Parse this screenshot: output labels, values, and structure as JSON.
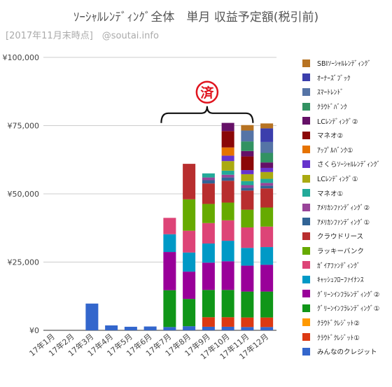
{
  "chart_data": {
    "type": "bar",
    "stacked": true,
    "title": "ｿｰｼｬﾙﾚﾝﾃﾞｨﾝｸﾞ全体　単月 収益予定額(税引前)",
    "subtitle": "[2017年11月末時点]　@soutai.info",
    "categories": [
      "17年1月",
      "17年2月",
      "17年3月",
      "17年4月",
      "17年5月",
      "17年6月",
      "17年7月",
      "17年8月",
      "17年9月",
      "17年10月",
      "17年11月",
      "17年12月"
    ],
    "y_ticks": [
      "¥0",
      "¥25,000",
      "¥50,000",
      "¥75,000",
      "¥100,000"
    ],
    "ylim": [
      0,
      100000
    ],
    "grid": true,
    "legend_position": "right",
    "annotation": {
      "stamp": "済",
      "spans_categories": [
        "17年9月",
        "17年11月"
      ]
    },
    "series": [
      {
        "name": "みんなのクレジット",
        "color": "#3366cc",
        "values": [
          0,
          0,
          9800,
          1800,
          1300,
          1400,
          1200,
          1500,
          1300,
          1300,
          1200,
          1200
        ]
      },
      {
        "name": "ｸﾗｳﾄﾞｸﾚｼﾞｯﾄ①",
        "color": "#dc3912",
        "values": [
          0,
          0,
          0,
          0,
          0,
          0,
          0,
          0,
          3500,
          3500,
          3500,
          3500
        ]
      },
      {
        "name": "ｸﾗｳﾄﾞｸﾚｼﾞｯﾄ②",
        "color": "#ff9900",
        "values": [
          0,
          0,
          0,
          0,
          0,
          0,
          0,
          0,
          0,
          0,
          0,
          0
        ]
      },
      {
        "name": "ｸﾞﾘｰﾝｲﾝﾌﾗﾚﾝﾃﾞｨﾝｸﾞ①",
        "color": "#109618",
        "values": [
          0,
          0,
          0,
          0,
          0,
          0,
          13500,
          10000,
          10000,
          10000,
          9500,
          9500
        ]
      },
      {
        "name": "ｸﾞﾘｰﾝｲﾝﾌﾗﾚﾝﾃﾞｨﾝｸﾞ②",
        "color": "#990099",
        "values": [
          0,
          0,
          0,
          0,
          0,
          0,
          14000,
          10000,
          10000,
          10500,
          9500,
          9800
        ]
      },
      {
        "name": "ｷｬｯｼｭﾌﾛｰﾌｧｲﾅﾝｽ",
        "color": "#0099c6",
        "values": [
          0,
          0,
          0,
          0,
          0,
          0,
          6500,
          7000,
          7000,
          7500,
          6500,
          6500
        ]
      },
      {
        "name": "ｶﾞｲｱﾌｧﾝﾃﾞｨﾝｸﾞ",
        "color": "#dd4477",
        "values": [
          0,
          0,
          0,
          0,
          0,
          0,
          6000,
          8000,
          7500,
          7500,
          7500,
          7500
        ]
      },
      {
        "name": "ラッキーバンク",
        "color": "#66aa00",
        "values": [
          0,
          0,
          0,
          0,
          0,
          0,
          0,
          11500,
          7000,
          6500,
          6500,
          7000
        ]
      },
      {
        "name": "クラウドリース",
        "color": "#b82e2e",
        "values": [
          0,
          0,
          0,
          0,
          0,
          0,
          0,
          13000,
          7500,
          8000,
          7000,
          7000
        ]
      },
      {
        "name": "ｱﾒﾘｶﾝﾌｧﾝﾃﾞｨﾝｸﾞ①",
        "color": "#316395",
        "values": [
          0,
          0,
          0,
          0,
          0,
          0,
          0,
          0,
          1200,
          1200,
          1000,
          1000
        ]
      },
      {
        "name": "ｱﾒﾘｶﾝﾌｧﾝﾃﾞｨﾝｸﾞ②",
        "color": "#994499",
        "values": [
          0,
          0,
          0,
          0,
          0,
          0,
          0,
          0,
          1000,
          1000,
          1000,
          1000
        ]
      },
      {
        "name": "マネオ①",
        "color": "#22aa99",
        "values": [
          0,
          0,
          0,
          0,
          0,
          0,
          0,
          0,
          1500,
          1500,
          1500,
          1500
        ]
      },
      {
        "name": "LCﾚﾝﾃﾞｨﾝｸﾞ①",
        "color": "#aaaa11",
        "values": [
          0,
          0,
          0,
          0,
          0,
          0,
          0,
          0,
          0,
          3500,
          2500,
          2500
        ]
      },
      {
        "name": "さくらｿｰｼｬﾙﾚﾝﾃﾞｨﾝｸﾞ",
        "color": "#6633cc",
        "values": [
          0,
          0,
          0,
          0,
          0,
          0,
          0,
          0,
          0,
          2000,
          1500,
          1500
        ]
      },
      {
        "name": "ｱｯﾌﾟﾙﾊﾞﾝｸ①",
        "color": "#e67300",
        "values": [
          0,
          0,
          0,
          0,
          0,
          0,
          0,
          0,
          0,
          3000,
          0,
          0
        ]
      },
      {
        "name": "マネオ②",
        "color": "#8b0707",
        "values": [
          0,
          0,
          0,
          0,
          0,
          0,
          0,
          0,
          0,
          6000,
          5000,
          0
        ]
      },
      {
        "name": "LCﾚﾝﾃﾞｨﾝｸﾞ②",
        "color": "#651067",
        "values": [
          0,
          0,
          0,
          0,
          0,
          0,
          0,
          0,
          0,
          3000,
          2000,
          2000
        ]
      },
      {
        "name": "ｸﾗｳﾄﾞﾊﾞﾝｸ",
        "color": "#329262",
        "values": [
          0,
          0,
          0,
          0,
          0,
          0,
          0,
          0,
          0,
          0,
          3500,
          3500
        ]
      },
      {
        "name": "ｽﾏｰﾄﾚﾝﾄﾞ",
        "color": "#5574a6",
        "values": [
          0,
          0,
          0,
          0,
          0,
          0,
          0,
          0,
          0,
          0,
          4000,
          4000
        ]
      },
      {
        "name": "ｵｰﾅｰｽﾞﾌﾞｯｸ",
        "color": "#3b3eac",
        "values": [
          0,
          0,
          0,
          0,
          0,
          0,
          0,
          0,
          0,
          0,
          0,
          5000
        ]
      },
      {
        "name": "SBIｿｰｼｬﾙﾚﾝﾃﾞｨﾝｸﾞ",
        "color": "#b77322",
        "values": [
          0,
          0,
          0,
          0,
          0,
          0,
          0,
          0,
          0,
          0,
          2000,
          1800
        ]
      }
    ]
  }
}
